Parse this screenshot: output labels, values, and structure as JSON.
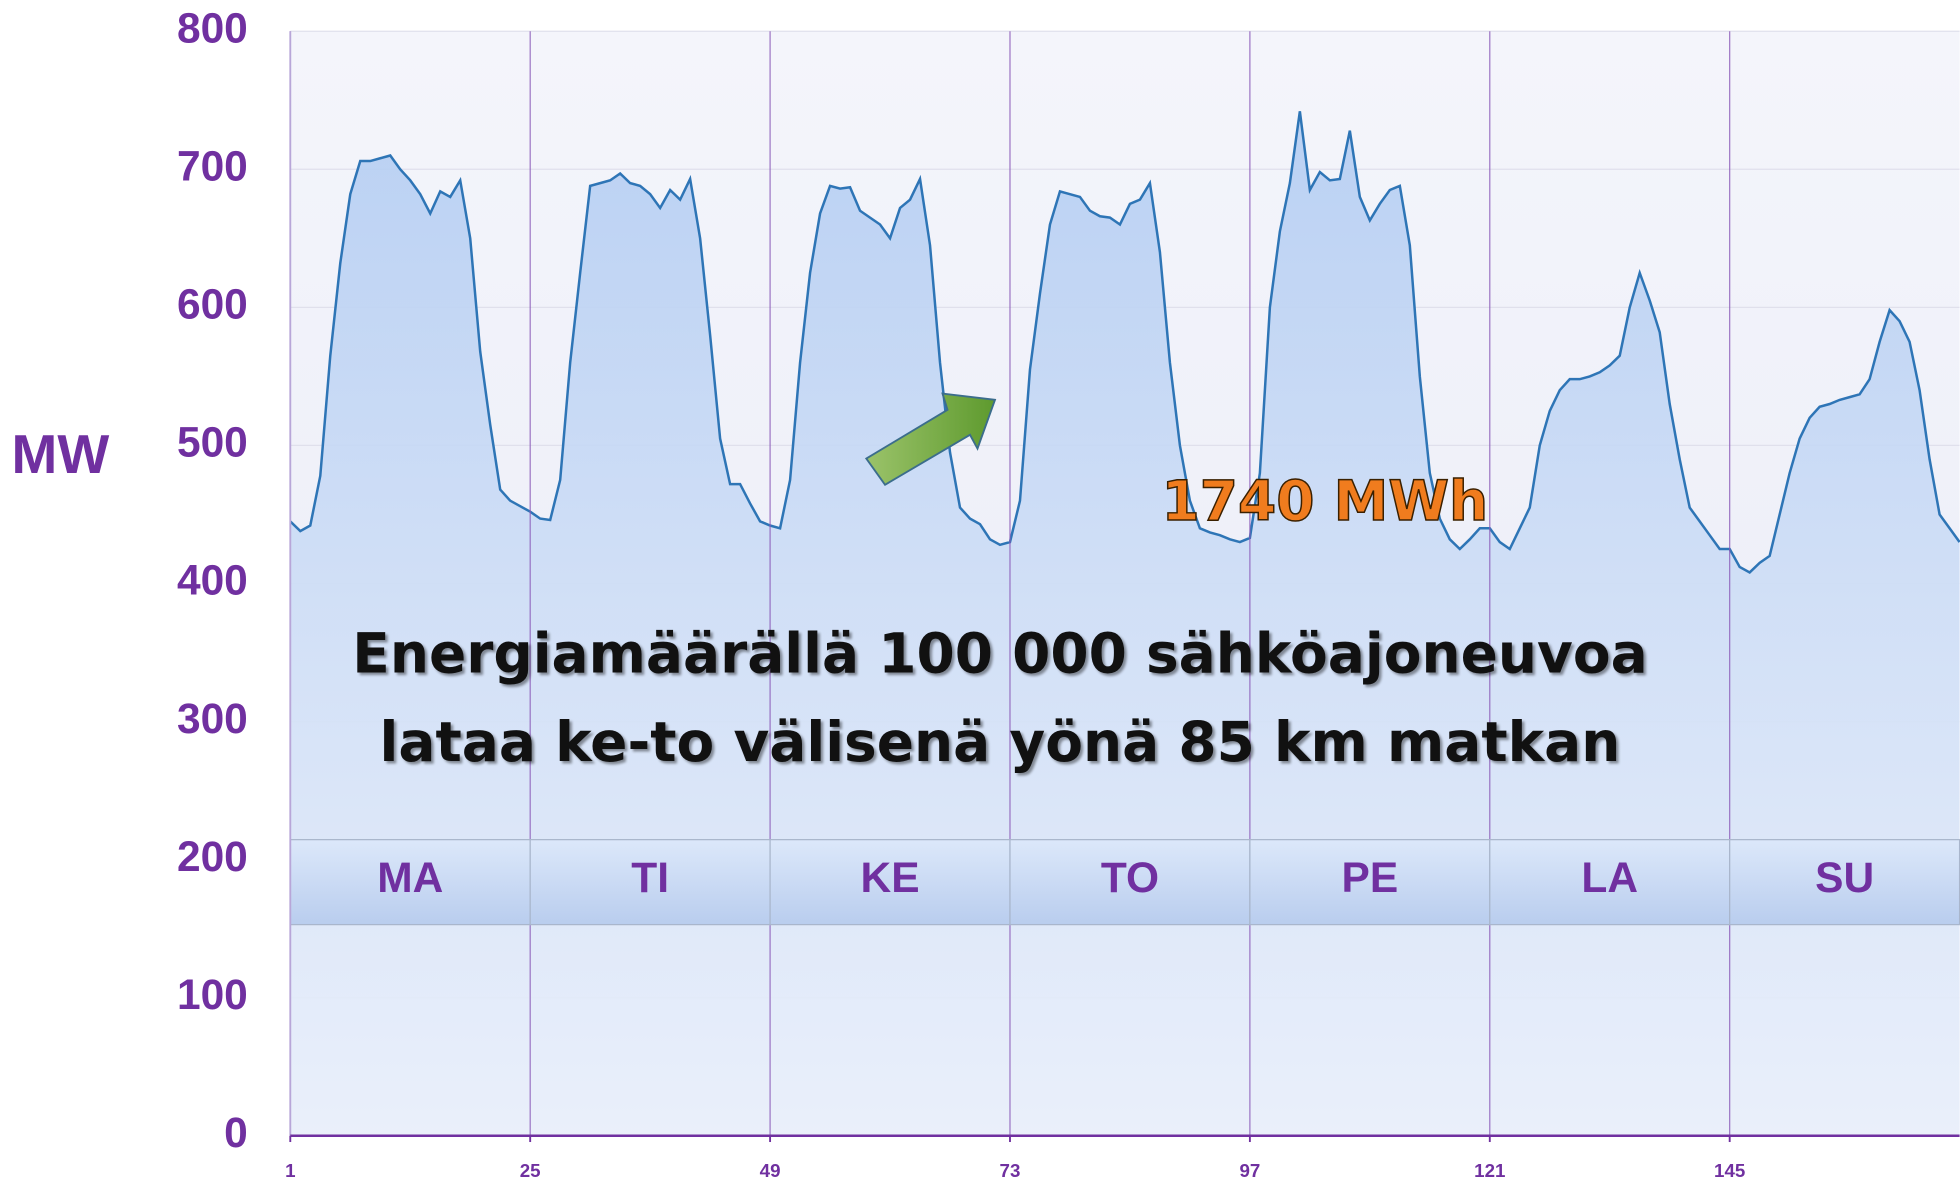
{
  "chart_data": {
    "type": "area",
    "ylabel": "MW",
    "x": [
      1,
      2,
      3,
      4,
      5,
      6,
      7,
      8,
      9,
      10,
      11,
      12,
      13,
      14,
      15,
      16,
      17,
      18,
      19,
      20,
      21,
      22,
      23,
      24,
      25,
      26,
      27,
      28,
      29,
      30,
      31,
      32,
      33,
      34,
      35,
      36,
      37,
      38,
      39,
      40,
      41,
      42,
      43,
      44,
      45,
      46,
      47,
      48,
      49,
      50,
      51,
      52,
      53,
      54,
      55,
      56,
      57,
      58,
      59,
      60,
      61,
      62,
      63,
      64,
      65,
      66,
      67,
      68,
      69,
      70,
      71,
      72,
      73,
      74,
      75,
      76,
      77,
      78,
      79,
      80,
      81,
      82,
      83,
      84,
      85,
      86,
      87,
      88,
      89,
      90,
      91,
      92,
      93,
      94,
      95,
      96,
      97,
      98,
      99,
      100,
      101,
      102,
      103,
      104,
      105,
      106,
      107,
      108,
      109,
      110,
      111,
      112,
      113,
      114,
      115,
      116,
      117,
      118,
      119,
      120,
      121,
      122,
      123,
      124,
      125,
      126,
      127,
      128,
      129,
      130,
      131,
      132,
      133,
      134,
      135,
      136,
      137,
      138,
      139,
      140,
      141,
      142,
      143,
      144,
      145,
      146,
      147,
      148,
      149,
      150,
      151,
      152,
      153,
      154,
      155,
      156,
      157,
      158,
      159,
      160,
      161,
      162,
      163,
      164,
      165,
      166,
      167,
      168
    ],
    "series": [
      {
        "color": "#2e75b6",
        "values": [
          445,
          438,
          442,
          478,
          565,
          632,
          682,
          706,
          706,
          708,
          710,
          700,
          692,
          682,
          668,
          684,
          680,
          692,
          650,
          568,
          515,
          468,
          460,
          456,
          452,
          447,
          446,
          475,
          560,
          625,
          688,
          690,
          692,
          697,
          690,
          688,
          682,
          672,
          685,
          678,
          693,
          650,
          580,
          505,
          472,
          472,
          458,
          445,
          442,
          440,
          475,
          560,
          625,
          668,
          688,
          686,
          687,
          670,
          665,
          660,
          650,
          672,
          678,
          693,
          645,
          560,
          495,
          455,
          447,
          443,
          432,
          428,
          430,
          460,
          555,
          610,
          660,
          684,
          682,
          680,
          670,
          666,
          665,
          660,
          675,
          678,
          690,
          640,
          560,
          500,
          460,
          440,
          437,
          435,
          432,
          430,
          433,
          480,
          600,
          655,
          690,
          742,
          685,
          698,
          692,
          693,
          728,
          680,
          663,
          675,
          685,
          688,
          645,
          550,
          480,
          447,
          432,
          425,
          432,
          440,
          440,
          430,
          425,
          440,
          455,
          500,
          525,
          540,
          548,
          548,
          550,
          553,
          558,
          565,
          600,
          625,
          605,
          582,
          530,
          490,
          455,
          445,
          435,
          425,
          425,
          412,
          408,
          415,
          420,
          450,
          480,
          505,
          520,
          528,
          530,
          533,
          535,
          537,
          548,
          575,
          598,
          590,
          575,
          540,
          490,
          450,
          440,
          430
        ]
      }
    ],
    "xlim": [
      1,
      168
    ],
    "xticks": [
      1,
      25,
      49,
      73,
      97,
      121,
      145
    ],
    "ylim": [
      0,
      800
    ],
    "yticks": [
      0,
      100,
      200,
      300,
      400,
      500,
      600,
      700,
      800
    ],
    "day_labels": [
      "MA",
      "TI",
      "KE",
      "TO",
      "PE",
      "LA",
      "SU"
    ],
    "annotations": [
      "1740 MWh",
      "Energiamäärällä 100 000 sähköajoneuvoa",
      "lataa ke-to välisenä yönä 85 km matkan"
    ],
    "grid": true
  }
}
